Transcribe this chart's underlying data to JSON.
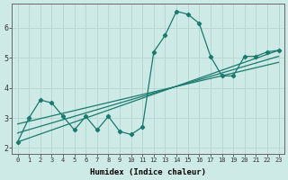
{
  "xlabel": "Humidex (Indice chaleur)",
  "bg_color": "#ceeae6",
  "line_color": "#1a7a6e",
  "grid_color": "#b8d8d4",
  "xlim": [
    -0.5,
    23.5
  ],
  "ylim": [
    1.8,
    6.8
  ],
  "xticks": [
    0,
    1,
    2,
    3,
    4,
    5,
    6,
    7,
    8,
    9,
    10,
    11,
    12,
    13,
    14,
    15,
    16,
    17,
    18,
    19,
    20,
    21,
    22,
    23
  ],
  "yticks": [
    2,
    3,
    4,
    5,
    6
  ],
  "line1_x": [
    0,
    1,
    2,
    3,
    4,
    5,
    6,
    7,
    8,
    9,
    10,
    11,
    12,
    13,
    14,
    15,
    16,
    17,
    18,
    19,
    20,
    21,
    22,
    23
  ],
  "line1_y": [
    2.2,
    3.0,
    3.6,
    3.5,
    3.05,
    2.6,
    3.05,
    2.6,
    3.05,
    2.55,
    2.45,
    2.7,
    5.2,
    5.75,
    6.55,
    6.45,
    6.15,
    5.05,
    4.4,
    4.4,
    5.05,
    5.05,
    5.2,
    5.25
  ],
  "line2_x": [
    0,
    23
  ],
  "line2_y": [
    2.2,
    5.25
  ],
  "line3_x": [
    0,
    23
  ],
  "line3_y": [
    2.5,
    5.05
  ],
  "line4_x": [
    0,
    23
  ],
  "line4_y": [
    2.8,
    4.85
  ]
}
